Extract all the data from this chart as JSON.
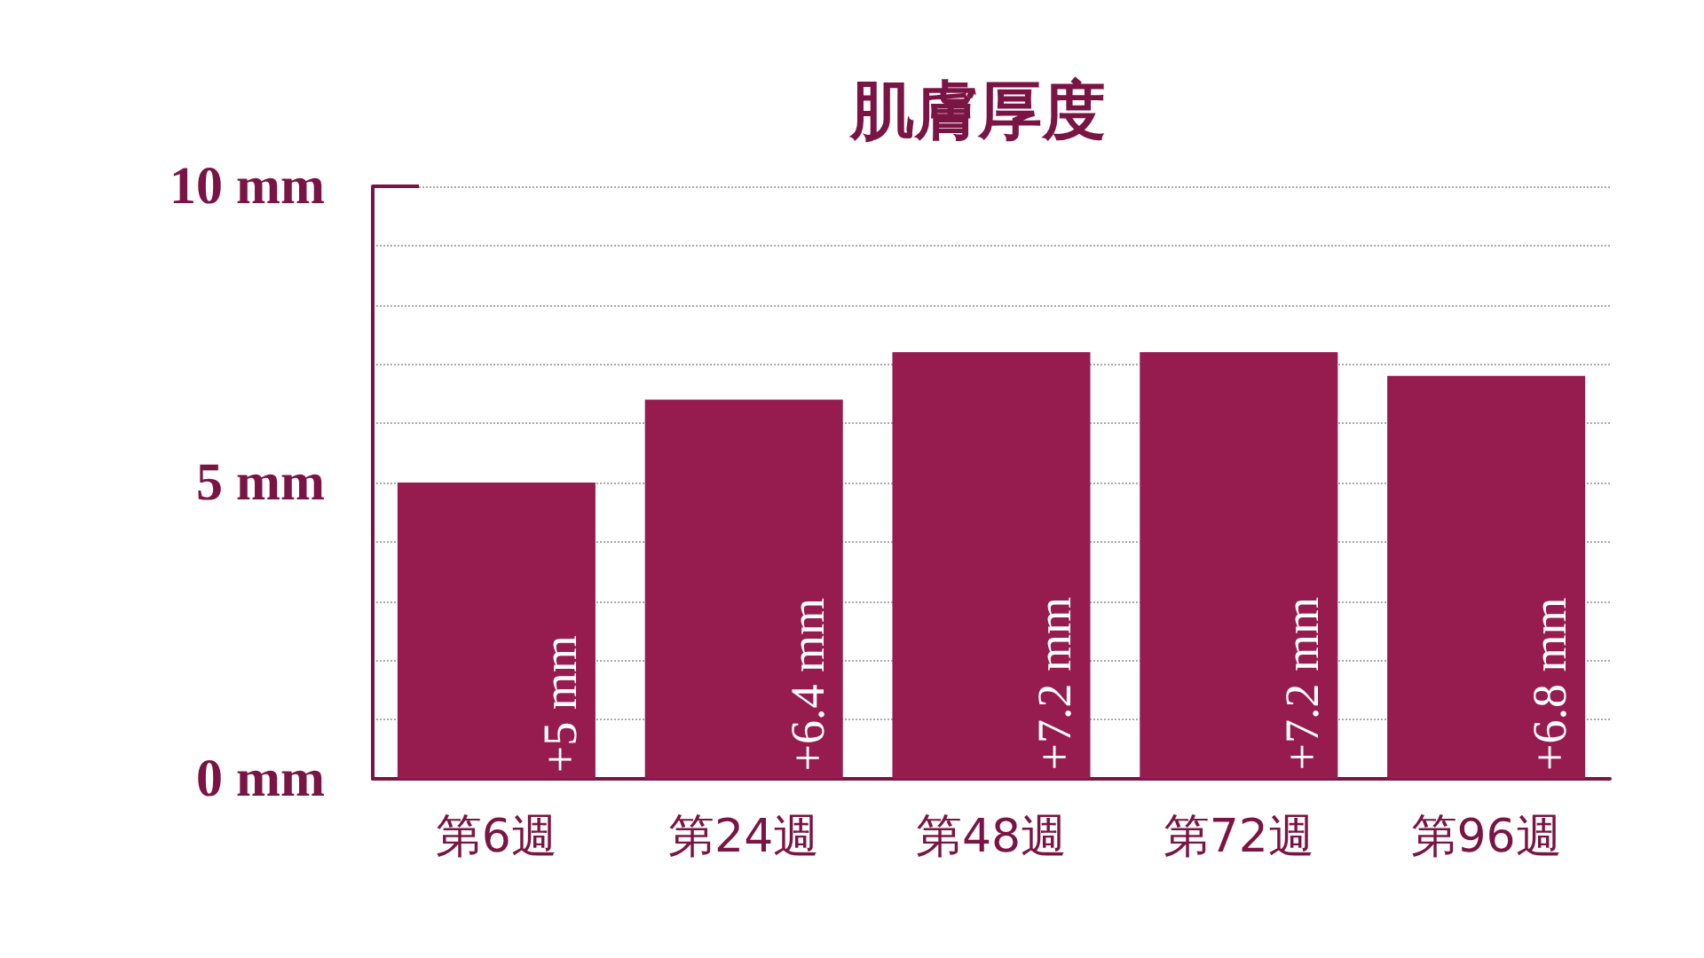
{
  "chart_data": {
    "type": "bar",
    "title": "肌膚厚度",
    "categories": [
      "第6週",
      "第24週",
      "第48週",
      "第72週",
      "第96週"
    ],
    "values": [
      5,
      6.4,
      7.2,
      7.2,
      6.8
    ],
    "value_labels": [
      "+5 mm",
      "+6.4 mm",
      "+7.2 mm",
      "+7.2 mm",
      "+6.8 mm"
    ],
    "color": "#961c50",
    "ylim": [
      0,
      10
    ],
    "yticks": [
      {
        "value": 0,
        "label": "0 mm"
      },
      {
        "value": 1,
        "label": null
      },
      {
        "value": 2,
        "label": null
      },
      {
        "value": 3,
        "label": null
      },
      {
        "value": 4,
        "label": null
      },
      {
        "value": 5,
        "label": "5 mm"
      },
      {
        "value": 6,
        "label": null
      },
      {
        "value": 7,
        "label": null
      },
      {
        "value": 8,
        "label": null
      },
      {
        "value": 9,
        "label": null
      },
      {
        "value": 10,
        "label": "10 mm"
      }
    ],
    "grid": "y"
  }
}
